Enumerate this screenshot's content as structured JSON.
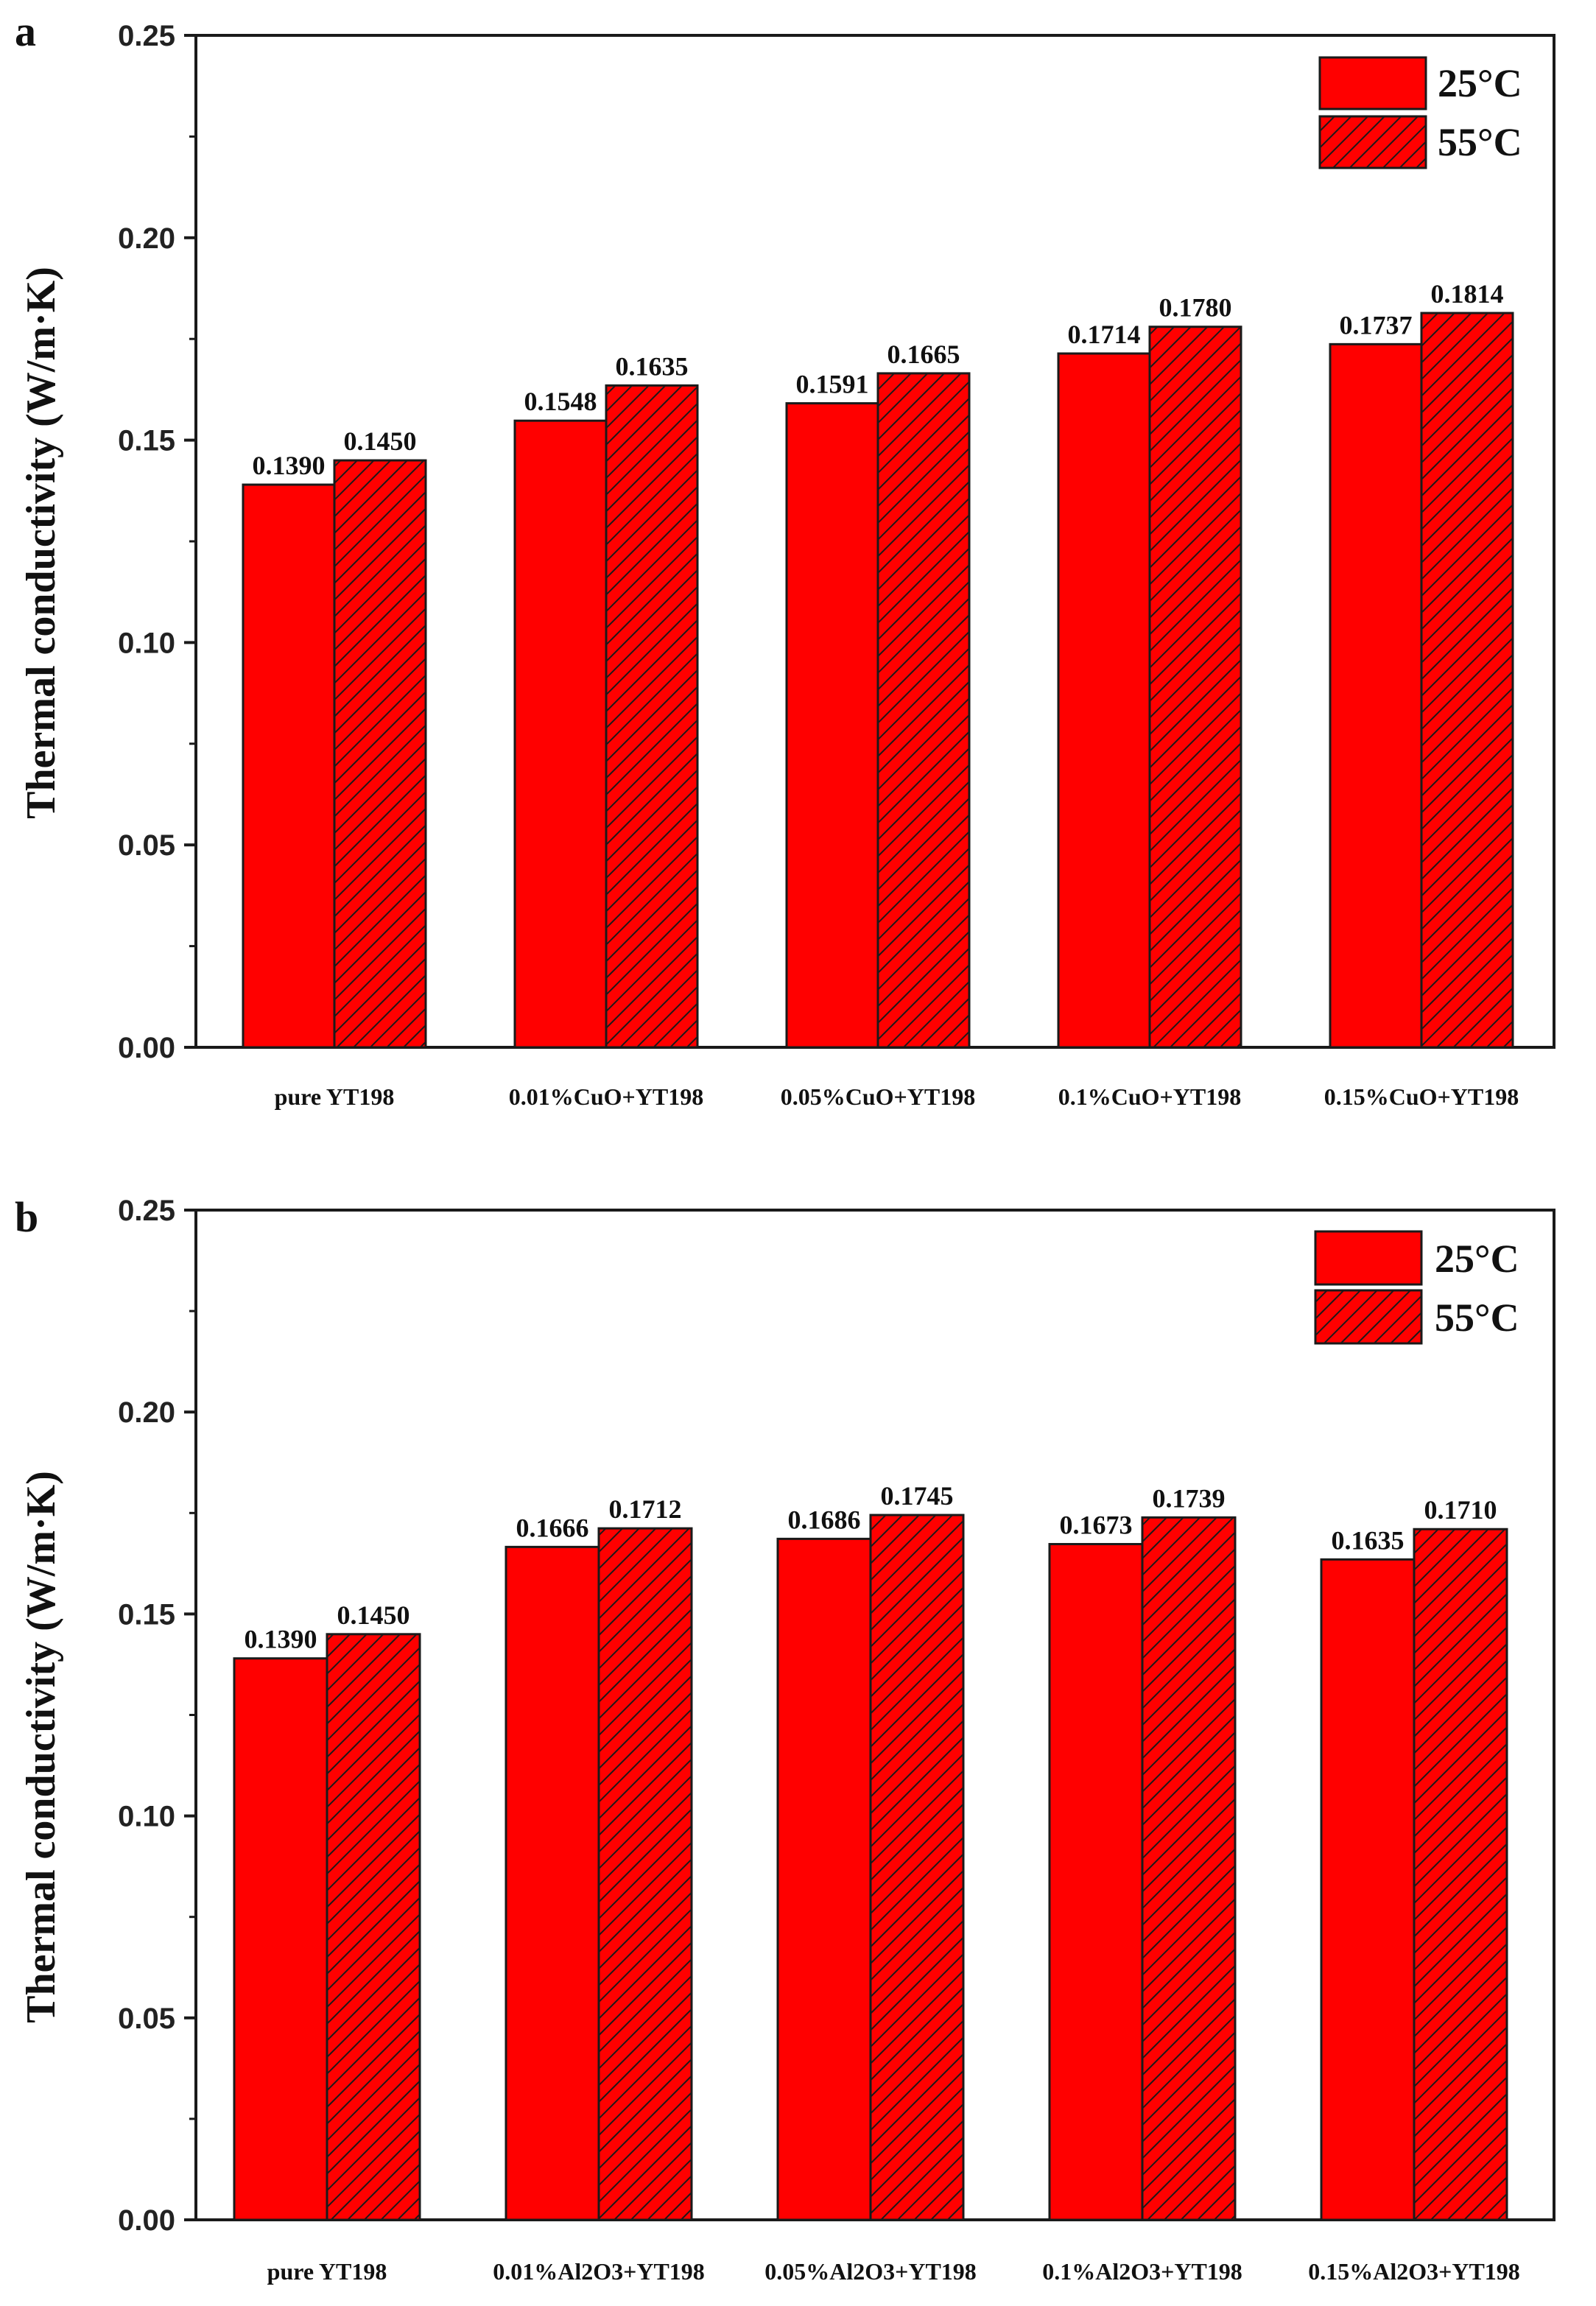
{
  "colors": {
    "bar_fill": "#ff0000",
    "bar_stroke": "#1a1a1a",
    "hatch": "#1a1a1a",
    "axis": "#1a1a1a"
  },
  "chart_data": [
    {
      "type": "bar",
      "panel_label": "a",
      "title": "",
      "xlabel": "",
      "ylabel": "Thermal conductivity (W/m·K)",
      "ylim": [
        0,
        0.25
      ],
      "yticks": [
        "0.00",
        "0.05",
        "0.10",
        "0.15",
        "0.20",
        "0.25"
      ],
      "legend_position": "top-right",
      "categories": [
        "pure YT198",
        "0.01%CuO+YT198",
        "0.05%CuO+YT198",
        "0.1%CuO+YT198",
        "0.15%CuO+YT198"
      ],
      "series": [
        {
          "name": "25°C",
          "pattern": "solid",
          "values": [
            0.139,
            0.1548,
            0.1591,
            0.1714,
            0.1737
          ],
          "labels": [
            "0.1390",
            "0.1548",
            "0.1591",
            "0.1714",
            "0.1737"
          ]
        },
        {
          "name": "55°C",
          "pattern": "hatched",
          "values": [
            0.145,
            0.1635,
            0.1665,
            0.178,
            0.1814
          ],
          "labels": [
            "0.1450",
            "0.1635",
            "0.1665",
            "0.1780",
            "0.1814"
          ]
        }
      ]
    },
    {
      "type": "bar",
      "panel_label": "b",
      "title": "",
      "xlabel": "",
      "ylabel": "Thermal conductivity (W/m·K)",
      "ylim": [
        0,
        0.25
      ],
      "yticks": [
        "0.00",
        "0.05",
        "0.10",
        "0.15",
        "0.20",
        "0.25"
      ],
      "legend_position": "top-right",
      "categories": [
        "pure YT198",
        "0.01%Al2O3+YT198",
        "0.05%Al2O3+YT198",
        "0.1%Al2O3+YT198",
        "0.15%Al2O3+YT198"
      ],
      "series": [
        {
          "name": "25°C",
          "pattern": "solid",
          "values": [
            0.139,
            0.1666,
            0.1686,
            0.1673,
            0.1635
          ],
          "labels": [
            "0.1390",
            "0.1666",
            "0.1686",
            "0.1673",
            "0.1635"
          ]
        },
        {
          "name": "55°C",
          "pattern": "hatched",
          "values": [
            0.145,
            0.1712,
            0.1745,
            0.1739,
            0.171
          ],
          "labels": [
            "0.1450",
            "0.1712",
            "0.1745",
            "0.1739",
            "0.1710"
          ]
        }
      ]
    }
  ]
}
